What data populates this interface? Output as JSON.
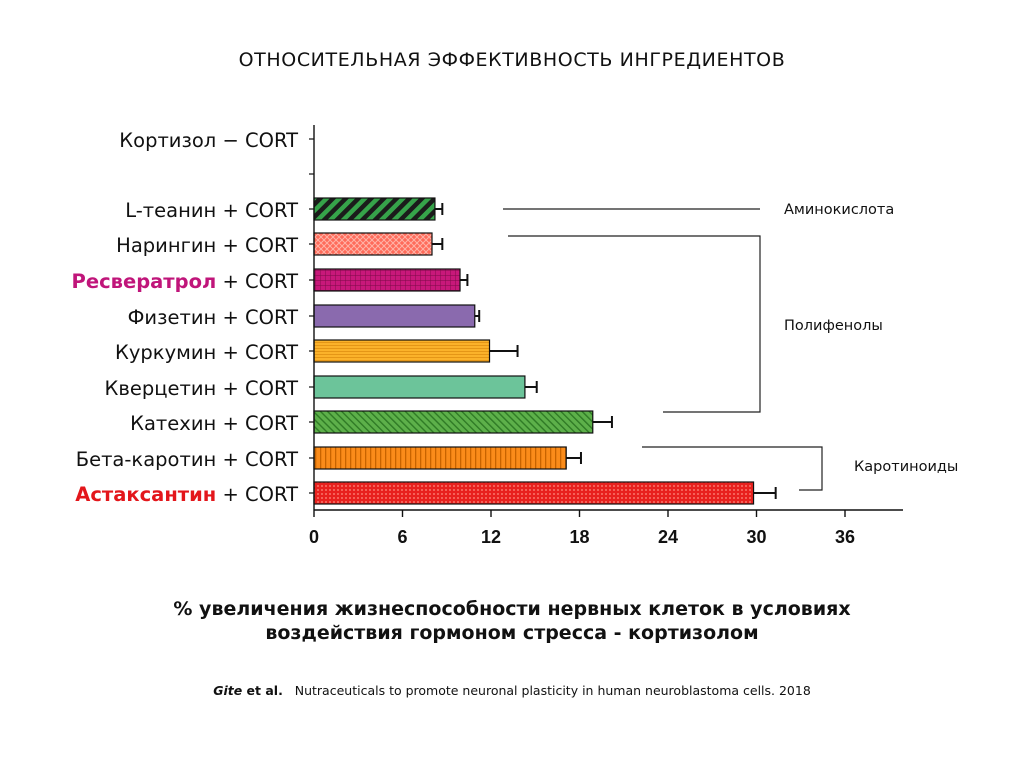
{
  "chart_data": {
    "type": "bar",
    "orientation": "horizontal",
    "title": "ОТНОСИТЕЛЬНАЯ ЭФФЕКТИВНОСТЬ ИНГРЕДИЕНТОВ",
    "xlabel_lines": [
      "% увеличения жизнеспособности нервных клеток в условиях",
      "воздействия гормоном стресса - кортизолом"
    ],
    "ylabel": "",
    "xlim": [
      0,
      36
    ],
    "xticks": [
      "0",
      "6",
      "12",
      "18",
      "24",
      "30",
      "36"
    ],
    "grid": false,
    "bars": [
      {
        "name": "Кортизол",
        "suffix": " − CORT",
        "value": 0,
        "error": 0,
        "highlight": false,
        "color": "#ffffff",
        "pattern": "none"
      },
      {
        "name": "L-теанин",
        "suffix": " + CORT",
        "value": 8.2,
        "error": 0.5,
        "highlight": false,
        "color": "#2b8a3e",
        "pattern": "diagonal-stripes"
      },
      {
        "name": "Нарингин",
        "suffix": " + CORT",
        "value": 8.0,
        "error": 0.7,
        "highlight": false,
        "color": "#ff6b5a",
        "pattern": "crosshatch"
      },
      {
        "name": "Ресвератрол",
        "suffix": " + CORT",
        "value": 9.9,
        "error": 0.5,
        "highlight": true,
        "highlight_color": "#c0157a",
        "color": "#c8187a",
        "pattern": "grid"
      },
      {
        "name": "Физетин",
        "suffix": " + CORT",
        "value": 10.9,
        "error": 0.3,
        "highlight": false,
        "color": "#8a6aae",
        "pattern": "solid"
      },
      {
        "name": "Куркумин",
        "suffix": " + CORT",
        "value": 11.9,
        "error": 1.9,
        "highlight": false,
        "color": "#fbb22a",
        "pattern": "horizontal-lines"
      },
      {
        "name": "Кверцетин",
        "suffix": " + CORT",
        "value": 14.3,
        "error": 0.8,
        "highlight": false,
        "color": "#6cc49a",
        "pattern": "solid"
      },
      {
        "name": "Катехин",
        "suffix": " + CORT",
        "value": 18.9,
        "error": 1.3,
        "highlight": false,
        "color": "#5db04a",
        "pattern": "fine-diagonal"
      },
      {
        "name": "Бета-каротин",
        "suffix": " + CORT",
        "value": 17.1,
        "error": 1.0,
        "highlight": false,
        "color": "#fb8c1a",
        "pattern": "vertical-lines"
      },
      {
        "name": "Астаксантин",
        "suffix": " + CORT",
        "value": 29.8,
        "error": 1.5,
        "highlight": true,
        "highlight_color": "#e3161b",
        "color": "#e8211e",
        "pattern": "dots"
      }
    ],
    "groups": [
      {
        "label": "Аминокислота",
        "from": 1,
        "to": 1
      },
      {
        "label": "Полифенолы",
        "from": 2,
        "to": 7
      },
      {
        "label": "Каротиноиды",
        "from": 8,
        "to": 9
      }
    ]
  },
  "citation": {
    "author": "Gite",
    "etal": " et al.",
    "text": "   Nutraceuticals to promote neuronal plasticity in human neuroblastoma cells. 2018"
  }
}
